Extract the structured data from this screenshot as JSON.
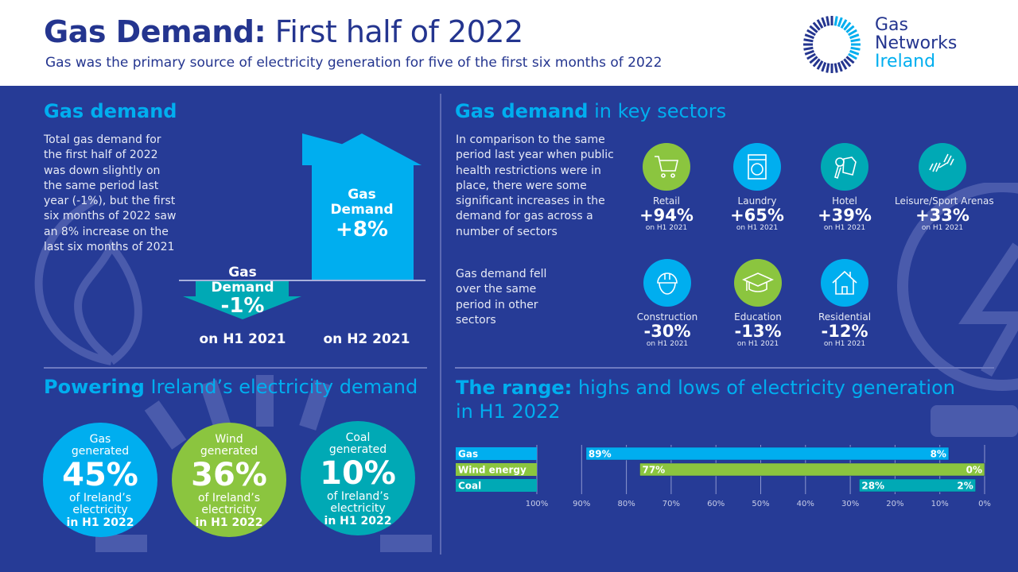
{
  "header": {
    "title_bold": "Gas Demand:",
    "title_rest": " First half of 2022",
    "subtitle": "Gas was the primary source of electricity generation for five of the first six months of 2022",
    "logo": {
      "line1": "Gas",
      "line2": "Networks",
      "line3": "Ireland"
    }
  },
  "colors": {
    "background": "#263b96",
    "cyan": "#00aeef",
    "green": "#8bc53f",
    "teal": "#00a9b5",
    "navy": "#24358f"
  },
  "gas_demand": {
    "heading": "Gas demand",
    "body": "Total gas demand for the first half of 2022 was down slightly on the same period last year (-1%), but the first six months of 2022 saw an 8% increase on the last six months of 2021",
    "down": {
      "label1": "Gas",
      "label2": "Demand",
      "value": "-1%",
      "caption": "on H1 2021"
    },
    "up": {
      "label1": "Gas",
      "label2": "Demand",
      "value": "+8%",
      "caption": "on H2 2021"
    }
  },
  "sectors": {
    "heading_bold": "Gas demand",
    "heading_rest": " in key sectors",
    "intro_increase": "In comparison to the same period last year when public health restrictions were in place, there were some significant increases in the demand for gas across a number of sectors",
    "intro_decrease": "Gas demand fell over the same period in other sectors",
    "items": [
      {
        "label": "Retail",
        "value": "+94%",
        "sub": "on H1 2021",
        "icon": "shopping-cart-icon"
      },
      {
        "label": "Laundry",
        "value": "+65%",
        "sub": "on H1 2021",
        "icon": "washing-machine-icon"
      },
      {
        "label": "Hotel",
        "value": "+39%",
        "sub": "on H1 2021",
        "icon": "hotel-key-icon"
      },
      {
        "label": "Leisure/Sport Arenas",
        "value": "+33%",
        "sub": "on H1 2021",
        "icon": "dumbbell-icon"
      },
      {
        "label": "Construction",
        "value": "-30%",
        "sub": "on H1 2021",
        "icon": "hard-hat-icon"
      },
      {
        "label": "Education",
        "value": "-13%",
        "sub": "on H1 2021",
        "icon": "graduation-cap-icon"
      },
      {
        "label": "Residential",
        "value": "-12%",
        "sub": "on H1 2021",
        "icon": "house-icon"
      }
    ]
  },
  "powering": {
    "heading_bold": "Powering",
    "heading_rest": " Ireland’s electricity demand",
    "items": [
      {
        "line1": "Gas",
        "line2": "generated",
        "value": "45%",
        "line3": "of Ireland’s",
        "line4": "electricity",
        "line5": "in H1 2022"
      },
      {
        "line1": "Wind",
        "line2": "generated",
        "value": "36%",
        "line3": "of Ireland’s",
        "line4": "electricity",
        "line5": "in H1 2022"
      },
      {
        "line1": "Coal",
        "line2": "generated",
        "value": "10%",
        "line3": "of Ireland’s",
        "line4": "electricity",
        "line5": "in H1 2022"
      }
    ]
  },
  "range": {
    "heading_bold": "The range:",
    "heading_rest": " highs and lows of electricity generation",
    "heading_line2": "in H1 2022"
  },
  "chart_data": {
    "type": "bar",
    "orientation": "horizontal-range",
    "categories": [
      "Gas",
      "Wind energy",
      "Coal"
    ],
    "series": [
      {
        "values": [
          [
            89,
            8
          ],
          [
            77,
            0
          ],
          [
            28,
            2
          ]
        ],
        "high_labels": [
          "89%",
          "77%",
          "28%"
        ],
        "low_labels": [
          "8%",
          "0%",
          "2%"
        ]
      }
    ],
    "xlim": [
      100,
      0
    ],
    "x_reversed": true,
    "xticks": [
      "100%",
      "90%",
      "80%",
      "70%",
      "60%",
      "50%",
      "40%",
      "30%",
      "20%",
      "10%",
      "0%"
    ],
    "grid": true,
    "bar_colors": [
      "#00aeef",
      "#8bc53f",
      "#00a9b5"
    ]
  }
}
